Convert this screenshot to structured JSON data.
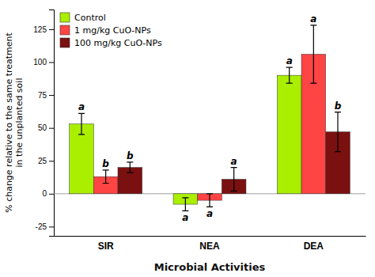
{
  "chart_data": {
    "type": "bar",
    "categories": [
      "SIR",
      "NEA",
      "DEA"
    ],
    "series": [
      {
        "name": "Control",
        "color": "#AAEE00",
        "values": [
          53,
          -8,
          90
        ],
        "errors": [
          8,
          5,
          6
        ],
        "sig_labels": [
          "a",
          "a",
          "a"
        ]
      },
      {
        "name": "1 mg/kg CuO-NPs",
        "color": "#FF4444",
        "values": [
          13,
          -5,
          106
        ],
        "errors": [
          5,
          5,
          22
        ],
        "sig_labels": [
          "b",
          "a",
          "a"
        ]
      },
      {
        "name": "100 mg/kg CuO-NPs",
        "color": "#7B1010",
        "values": [
          20,
          11,
          47
        ],
        "errors": [
          4,
          9,
          15
        ],
        "sig_labels": [
          "b",
          "a",
          "b"
        ]
      }
    ],
    "xlabel": "Microbial Activities",
    "ylabel": "% change relative to the same treatment\nin the unplanted soil",
    "ylim": [
      -32,
      140
    ],
    "yticks": [
      -25,
      0,
      25,
      50,
      75,
      100,
      125
    ],
    "grid": false,
    "legend": "upper left"
  }
}
